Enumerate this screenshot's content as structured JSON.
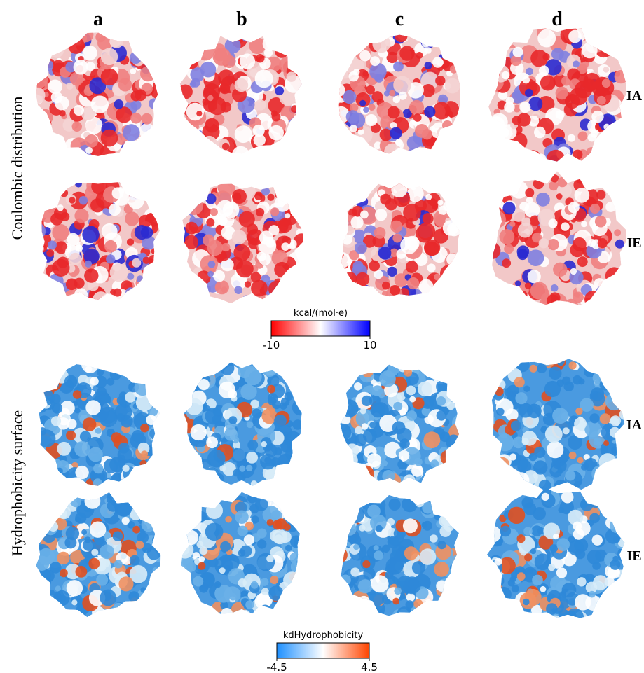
{
  "columns": [
    "a",
    "b",
    "c",
    "d"
  ],
  "rows": [
    "IA",
    "IE"
  ],
  "sections": [
    {
      "label": "Coulombic distribution",
      "colorbar": {
        "title": "kcal/(mol·e)",
        "min_label": "-10",
        "max_label": "10"
      }
    },
    {
      "label": "Hydrophobicity surface",
      "colorbar": {
        "title": "kdHydrophobicity",
        "min_label": "-4.5",
        "max_label": "4.5"
      }
    }
  ]
}
